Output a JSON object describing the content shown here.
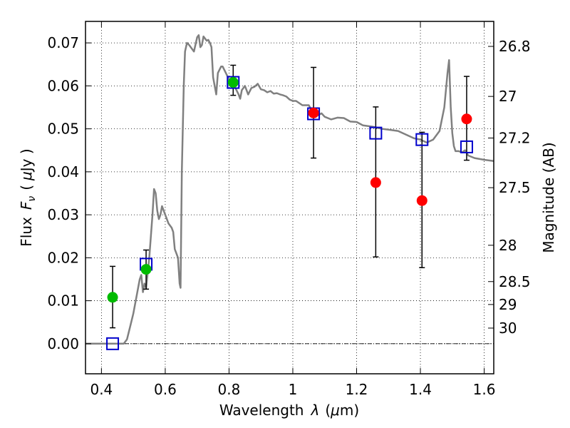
{
  "chart_data": {
    "type": "scatter",
    "xlabel_text": "Wavelength",
    "xlabel_symbol": "λ",
    "xlabel_unit_open": "(",
    "xlabel_unit_mu": "μ",
    "xlabel_unit_rest": "m)",
    "ylabel_text": "Flux",
    "ylabel_symbol": "F",
    "ylabel_sub": "ν",
    "ylabel_unit_open": "(",
    "ylabel_unit_mu": "μ",
    "ylabel_unit_rest": "Jy )",
    "y2label": "Magnitude (AB)",
    "xlim": [
      0.35,
      1.63
    ],
    "ylim": [
      -0.007,
      0.075
    ],
    "x_ticks": [
      0.4,
      0.6,
      0.8,
      1.0,
      1.2,
      1.4,
      1.6
    ],
    "x_tick_labels": [
      "0.4",
      "0.6",
      "0.8",
      "1",
      "1.2",
      "1.4",
      "1.6"
    ],
    "y_ticks": [
      0.0,
      0.01,
      0.02,
      0.03,
      0.04,
      0.05,
      0.06,
      0.07
    ],
    "y_tick_labels": [
      "0.00",
      "0.01",
      "0.02",
      "0.03",
      "0.04",
      "0.05",
      "0.06",
      "0.07"
    ],
    "y2_tick_labels": [
      "26.8",
      "27",
      "27.2",
      "27.5",
      "28",
      "28.5",
      "29",
      "30"
    ],
    "grid": true,
    "legend": "none",
    "model_spectrum": {
      "color": "#808080",
      "x": [
        0.35,
        0.47,
        0.48,
        0.49,
        0.5,
        0.51,
        0.52,
        0.525,
        0.53,
        0.535,
        0.54,
        0.55,
        0.56,
        0.565,
        0.57,
        0.575,
        0.58,
        0.585,
        0.59,
        0.6,
        0.61,
        0.62,
        0.625,
        0.63,
        0.635,
        0.64,
        0.645,
        0.648,
        0.652,
        0.658,
        0.662,
        0.668,
        0.675,
        0.68,
        0.69,
        0.7,
        0.705,
        0.71,
        0.715,
        0.72,
        0.73,
        0.735,
        0.74,
        0.745,
        0.75,
        0.755,
        0.76,
        0.765,
        0.775,
        0.78,
        0.79,
        0.8,
        0.805,
        0.81,
        0.82,
        0.83,
        0.835,
        0.84,
        0.85,
        0.86,
        0.87,
        0.88,
        0.89,
        0.9,
        0.91,
        0.92,
        0.93,
        0.94,
        0.95,
        0.96,
        0.97,
        0.98,
        0.99,
        1.0,
        1.01,
        1.03,
        1.05,
        1.07,
        1.09,
        1.1,
        1.12,
        1.14,
        1.16,
        1.18,
        1.2,
        1.22,
        1.25,
        1.28,
        1.3,
        1.33,
        1.35,
        1.38,
        1.4,
        1.42,
        1.44,
        1.46,
        1.475,
        1.485,
        1.49,
        1.495,
        1.5,
        1.505,
        1.51,
        1.52,
        1.53,
        1.54,
        1.55,
        1.57,
        1.6,
        1.63
      ],
      "y": [
        0.0,
        0.0,
        0.001,
        0.004,
        0.007,
        0.011,
        0.015,
        0.016,
        0.012,
        0.014,
        0.013,
        0.02,
        0.03,
        0.036,
        0.035,
        0.031,
        0.029,
        0.03,
        0.032,
        0.03,
        0.028,
        0.027,
        0.026,
        0.022,
        0.021,
        0.02,
        0.014,
        0.013,
        0.04,
        0.06,
        0.068,
        0.07,
        0.0695,
        0.069,
        0.068,
        0.0713,
        0.0718,
        0.069,
        0.0695,
        0.0715,
        0.0705,
        0.0707,
        0.07,
        0.069,
        0.062,
        0.06,
        0.058,
        0.063,
        0.0645,
        0.0645,
        0.063,
        0.0615,
        0.06,
        0.0598,
        0.0595,
        0.058,
        0.057,
        0.059,
        0.06,
        0.058,
        0.0595,
        0.0598,
        0.0605,
        0.0592,
        0.059,
        0.0585,
        0.0588,
        0.0582,
        0.0583,
        0.058,
        0.0578,
        0.0575,
        0.0568,
        0.0565,
        0.0565,
        0.0555,
        0.0555,
        0.0528,
        0.0536,
        0.0528,
        0.0522,
        0.0526,
        0.0525,
        0.0517,
        0.0516,
        0.0508,
        0.0505,
        0.05,
        0.0498,
        0.0495,
        0.0488,
        0.0478,
        0.0475,
        0.0468,
        0.0475,
        0.0495,
        0.055,
        0.063,
        0.066,
        0.055,
        0.049,
        0.046,
        0.0448,
        0.0448,
        0.0445,
        0.045,
        0.0438,
        0.0432,
        0.0428,
        0.0425
      ]
    },
    "series": [
      {
        "marker": "open-square",
        "color": "#0000cc",
        "x": [
          0.435,
          0.54,
          0.813,
          1.065,
          1.26,
          1.405,
          1.545
        ],
        "y": [
          0.0,
          0.0185,
          0.0608,
          0.0535,
          0.049,
          0.0475,
          0.0458
        ]
      },
      {
        "marker": "filled-circle",
        "color": "#00bb00",
        "x": [
          0.435,
          0.54,
          0.813
        ],
        "y": [
          0.0108,
          0.0173,
          0.0608
        ],
        "err_lo": [
          0.0037,
          0.0127,
          0.0578
        ],
        "err_hi": [
          0.018,
          0.0218,
          0.0648
        ]
      },
      {
        "marker": "filled-circle",
        "color": "#ff0000",
        "x": [
          1.065,
          1.26,
          1.405,
          1.545
        ],
        "y": [
          0.0537,
          0.0375,
          0.0333,
          0.0523
        ],
        "err_lo": [
          0.0432,
          0.0202,
          0.0177,
          0.0427
        ],
        "err_hi": [
          0.0643,
          0.0551,
          0.0492,
          0.0622
        ]
      }
    ]
  }
}
